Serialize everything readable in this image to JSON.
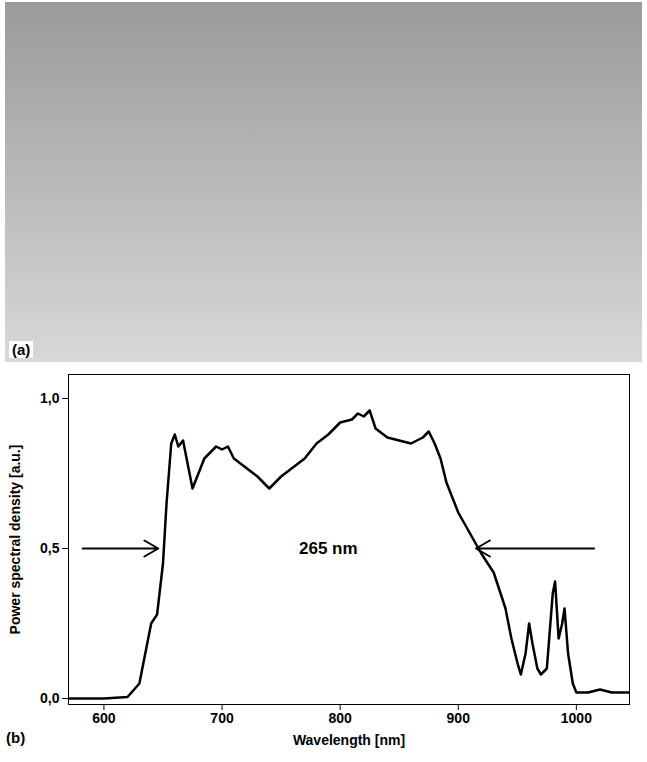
{
  "photo": {
    "label": "(a)"
  },
  "chart_data": {
    "type": "line",
    "panel_label": "(b)",
    "x_label": "Wavelength [nm]",
    "y_label": "Power spectral density [a.u.]",
    "color": "#000000",
    "x": [
      570,
      600,
      620,
      630,
      635,
      640,
      645,
      650,
      653,
      657,
      660,
      663,
      667,
      670,
      675,
      680,
      685,
      690,
      695,
      700,
      705,
      710,
      720,
      730,
      740,
      745,
      750,
      760,
      770,
      780,
      790,
      800,
      810,
      815,
      820,
      825,
      830,
      840,
      850,
      860,
      870,
      875,
      880,
      885,
      890,
      900,
      910,
      920,
      930,
      940,
      945,
      950,
      953,
      957,
      960,
      963,
      967,
      970,
      975,
      980,
      982,
      985,
      988,
      990,
      993,
      997,
      1000,
      1010,
      1020,
      1030,
      1045
    ],
    "values": [
      0.0,
      0.0,
      0.005,
      0.05,
      0.15,
      0.25,
      0.28,
      0.45,
      0.65,
      0.85,
      0.88,
      0.84,
      0.86,
      0.8,
      0.7,
      0.75,
      0.8,
      0.82,
      0.84,
      0.83,
      0.84,
      0.8,
      0.77,
      0.74,
      0.7,
      0.72,
      0.74,
      0.77,
      0.8,
      0.85,
      0.88,
      0.92,
      0.93,
      0.95,
      0.94,
      0.96,
      0.9,
      0.87,
      0.86,
      0.85,
      0.87,
      0.89,
      0.85,
      0.8,
      0.72,
      0.62,
      0.55,
      0.48,
      0.42,
      0.3,
      0.2,
      0.12,
      0.08,
      0.15,
      0.25,
      0.18,
      0.1,
      0.08,
      0.1,
      0.35,
      0.39,
      0.2,
      0.25,
      0.3,
      0.15,
      0.05,
      0.02,
      0.02,
      0.03,
      0.02,
      0.02
    ],
    "xlim": [
      570,
      1045
    ],
    "xticks": [
      600,
      700,
      800,
      900,
      1000
    ],
    "ylim": [
      -0.02,
      1.08
    ],
    "yticks": [
      {
        "value": 0,
        "label": "0,0"
      },
      {
        "value": 0.5,
        "label": "0,5"
      },
      {
        "value": 1,
        "label": "1,0"
      }
    ],
    "annotations": [
      {
        "text": "265 nm",
        "x": 790,
        "y": 0.5
      }
    ],
    "arrows": [
      {
        "x1": 582,
        "x2": 646,
        "y": 0.5
      },
      {
        "x1": 1015,
        "x2": 915,
        "y": 0.5
      }
    ],
    "grid": false
  }
}
